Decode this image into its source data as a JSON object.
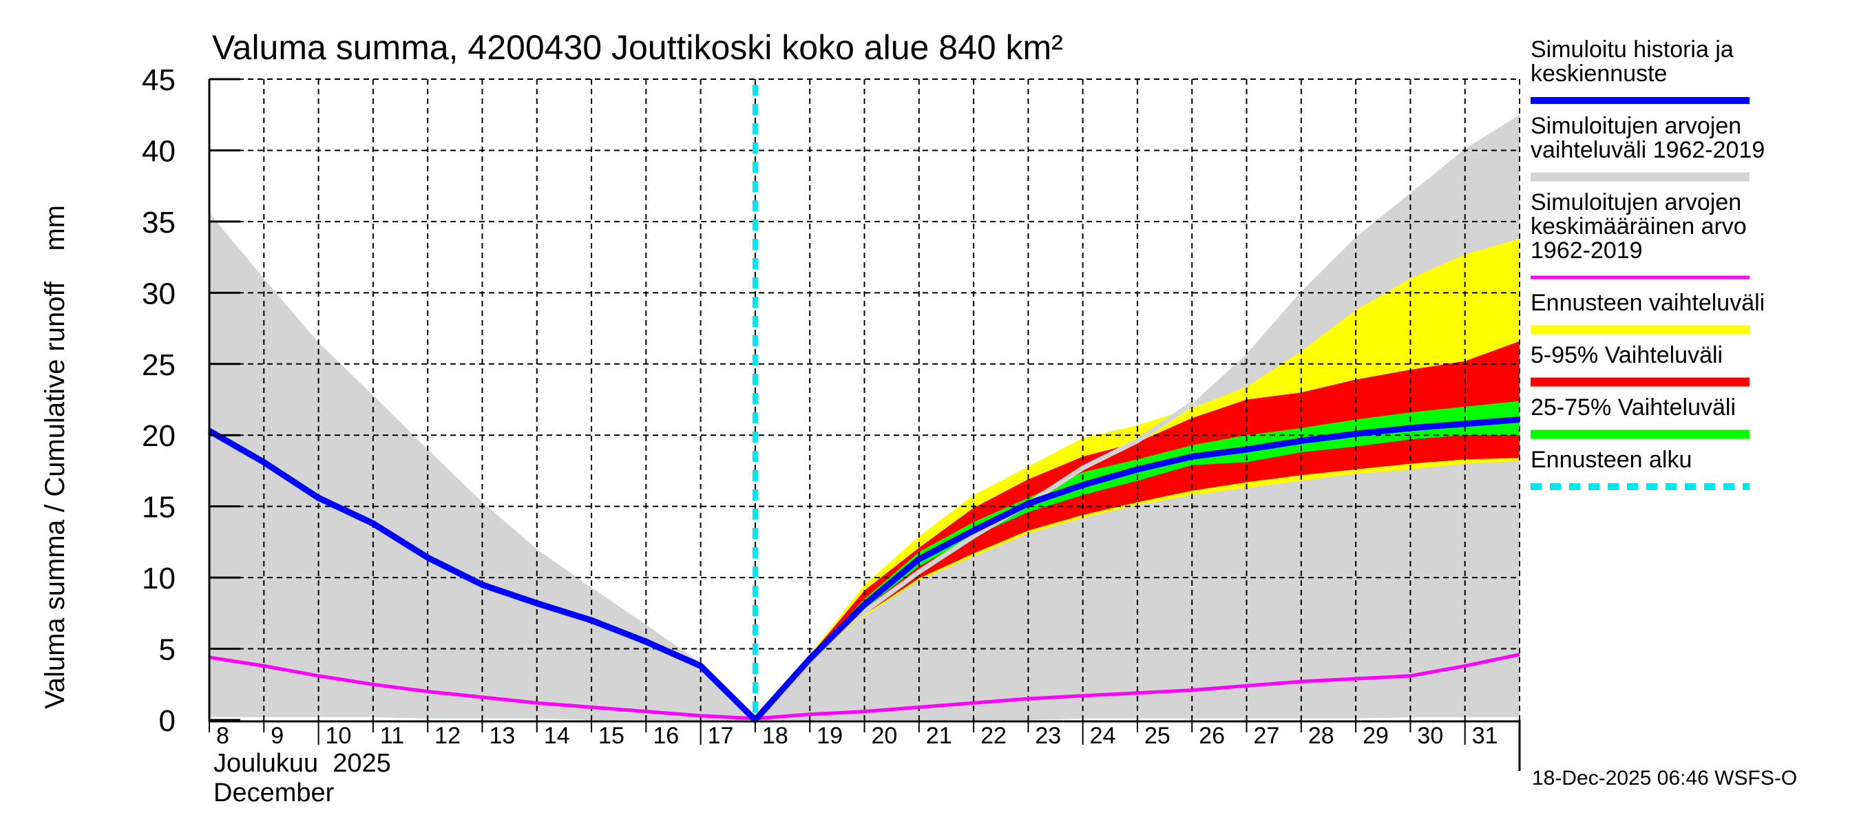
{
  "chart_data": {
    "type": "area",
    "title": "Valuma summa, 4200430 Jouttikoski koko alue 840 km²",
    "ylabel": "Valuma summa / Cumulative runoff    mm",
    "ylabel_unit": "mm",
    "xlabel_line1": "Joulukuu  2025",
    "xlabel_line2": "December",
    "ylim": [
      0,
      45
    ],
    "yticks": [
      0,
      5,
      10,
      15,
      20,
      25,
      30,
      35,
      40,
      45
    ],
    "xlim": [
      8,
      32
    ],
    "xticks": [
      8,
      9,
      10,
      11,
      12,
      13,
      14,
      15,
      16,
      17,
      18,
      19,
      20,
      21,
      22,
      23,
      24,
      25,
      26,
      27,
      28,
      29,
      30,
      31
    ],
    "grid": true,
    "forecast_start": 18,
    "timestamp": "18-Dec-2025 06:46 WSFS-O",
    "colors": {
      "history": "#0000ff",
      "hist_range": "#d4d4d4",
      "hist_mean": "#ff00ff",
      "forecast_range": "#ffff00",
      "p5_95": "#ff0000",
      "p25_75": "#00ff00",
      "forecast_start": "#00e5ee"
    },
    "legend": [
      {
        "key": "history",
        "lines": [
          "Simuloitu historia ja",
          "keskiennuste"
        ],
        "style": "solid"
      },
      {
        "key": "hist_range",
        "lines": [
          "Simuloitujen arvojen",
          "vaihteluväli 1962-2019"
        ],
        "style": "band"
      },
      {
        "key": "hist_mean",
        "lines": [
          "Simuloitujen arvojen",
          "keskimääräinen arvo",
          "   1962-2019"
        ],
        "style": "thin"
      },
      {
        "key": "forecast_range",
        "lines": [
          "Ennusteen vaihteluväli"
        ],
        "style": "band"
      },
      {
        "key": "p5_95",
        "lines": [
          "5-95% Vaihteluväli"
        ],
        "style": "band"
      },
      {
        "key": "p25_75",
        "lines": [
          "25-75% Vaihteluväli"
        ],
        "style": "band"
      },
      {
        "key": "forecast_start",
        "lines": [
          "Ennusteen alku"
        ],
        "style": "dashed"
      }
    ],
    "series": {
      "hist_range": {
        "x": [
          8,
          9,
          10,
          11,
          12,
          13,
          14,
          15,
          16,
          17,
          18,
          19,
          20,
          21,
          22,
          23,
          24,
          25,
          26,
          27,
          28,
          29,
          30,
          31,
          32
        ],
        "upper": [
          35.6,
          31.0,
          26.5,
          22.8,
          19.0,
          15.3,
          12.0,
          9.3,
          6.7,
          4.0,
          0.0,
          4.4,
          7.3,
          9.8,
          11.8,
          14.6,
          17.7,
          19.6,
          22.2,
          25.7,
          30.1,
          33.9,
          37.0,
          40.1,
          42.5
        ],
        "lower": [
          0.2,
          0.2,
          0.2,
          0.2,
          0.1,
          0.1,
          0.1,
          0.0,
          0.0,
          0.0,
          0.0,
          0.0,
          0.0,
          0.0,
          0.0,
          0.0,
          0.1,
          0.1,
          0.1,
          0.1,
          0.1,
          0.1,
          0.2,
          0.2,
          0.2
        ]
      },
      "hist_mean": {
        "x": [
          8,
          9,
          10,
          11,
          12,
          13,
          14,
          15,
          16,
          17,
          18,
          19,
          20,
          21,
          22,
          23,
          24,
          25,
          26,
          27,
          28,
          29,
          30,
          31,
          32
        ],
        "values": [
          4.4,
          3.8,
          3.1,
          2.5,
          2.0,
          1.6,
          1.2,
          0.9,
          0.6,
          0.3,
          0.1,
          0.4,
          0.6,
          0.9,
          1.2,
          1.5,
          1.7,
          1.9,
          2.1,
          2.4,
          2.7,
          2.9,
          3.1,
          3.8,
          4.6
        ]
      },
      "history": {
        "x": [
          8,
          9,
          10,
          11,
          12,
          13,
          14,
          15,
          16,
          17,
          18,
          19,
          20,
          21,
          22,
          23,
          24,
          25,
          26,
          27,
          28,
          29,
          30,
          31,
          32
        ],
        "values": [
          20.3,
          18.1,
          15.6,
          13.8,
          11.4,
          9.5,
          8.2,
          7.0,
          5.5,
          3.8,
          0.0,
          4.3,
          8.1,
          11.3,
          13.3,
          15.2,
          16.5,
          17.6,
          18.5,
          19.0,
          19.6,
          20.1,
          20.5,
          20.8,
          21.1
        ]
      },
      "forecast_range": {
        "x": [
          18,
          19,
          20,
          21,
          22,
          23,
          24,
          25,
          26,
          27,
          28,
          29,
          30,
          31,
          32
        ],
        "upper": [
          0.0,
          4.6,
          9.5,
          12.9,
          15.8,
          17.8,
          19.8,
          20.7,
          21.9,
          23.4,
          25.9,
          28.8,
          31.0,
          32.7,
          33.8
        ],
        "lower": [
          0.0,
          4.1,
          7.3,
          9.8,
          11.5,
          13.1,
          14.2,
          15.1,
          15.8,
          16.3,
          16.8,
          17.3,
          17.6,
          18.0,
          18.2
        ]
      },
      "p5_95": {
        "x": [
          18,
          19,
          20,
          21,
          22,
          23,
          24,
          25,
          26,
          27,
          28,
          29,
          30,
          31,
          32
        ],
        "upper": [
          0.0,
          4.5,
          9.1,
          12.1,
          14.9,
          16.9,
          18.5,
          19.5,
          21.2,
          22.5,
          23.0,
          23.9,
          24.6,
          25.2,
          26.6
        ],
        "lower": [
          0.0,
          4.2,
          7.4,
          9.95,
          11.7,
          13.3,
          14.4,
          15.3,
          16.1,
          16.7,
          17.2,
          17.6,
          18.0,
          18.3,
          18.4
        ]
      },
      "p25_75": {
        "x": [
          18,
          19,
          20,
          21,
          22,
          23,
          24,
          25,
          26,
          27,
          28,
          29,
          30,
          31,
          32
        ],
        "upper": [
          0.0,
          4.4,
          8.5,
          11.8,
          13.9,
          15.6,
          17.4,
          18.3,
          19.3,
          20.0,
          20.5,
          21.1,
          21.6,
          22.0,
          22.4
        ],
        "lower": [
          0.0,
          4.3,
          7.8,
          10.8,
          12.9,
          14.6,
          15.8,
          16.8,
          17.9,
          18.1,
          18.8,
          19.2,
          19.7,
          20.0,
          20.0
        ]
      },
      "hist_max_overlay": {
        "x": [
          18,
          19,
          20,
          21,
          22,
          23,
          24,
          25,
          26
        ],
        "values": [
          0.0,
          4.3,
          7.6,
          10.4,
          12.9,
          15.2,
          17.7,
          19.6,
          22.2
        ]
      }
    }
  }
}
